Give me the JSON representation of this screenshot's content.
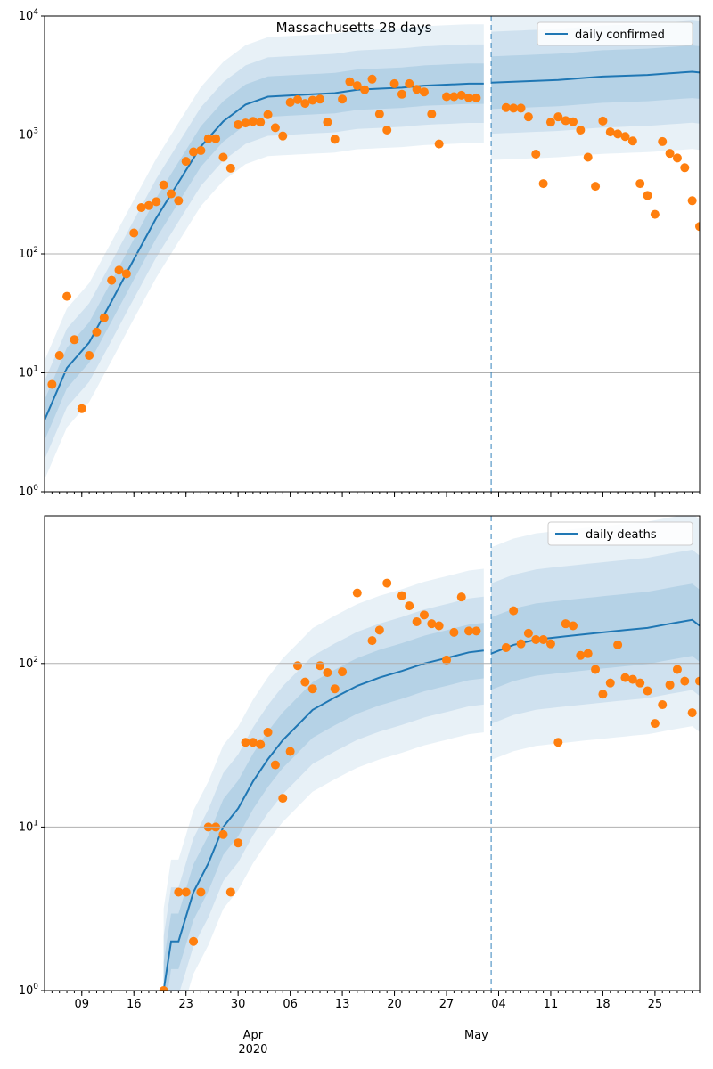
{
  "title": "Massachusetts 28 days",
  "x_month_labels": [
    {
      "date": "2020-04-01",
      "label": "Apr",
      "year": "2020"
    },
    {
      "date": "2020-05-01",
      "label": "May",
      "year": ""
    }
  ],
  "x_day_ticks": [
    {
      "date": "2020-03-09",
      "label": "09"
    },
    {
      "date": "2020-03-16",
      "label": "16"
    },
    {
      "date": "2020-03-23",
      "label": "23"
    },
    {
      "date": "2020-03-30",
      "label": "30"
    },
    {
      "date": "2020-04-06",
      "label": "06"
    },
    {
      "date": "2020-04-13",
      "label": "13"
    },
    {
      "date": "2020-04-20",
      "label": "20"
    },
    {
      "date": "2020-04-27",
      "label": "27"
    },
    {
      "date": "2020-05-04",
      "label": "04"
    },
    {
      "date": "2020-05-11",
      "label": "11"
    },
    {
      "date": "2020-05-18",
      "label": "18"
    },
    {
      "date": "2020-05-25",
      "label": "25"
    }
  ],
  "forecast_start": "2020-05-03",
  "chart_data": [
    {
      "type": "line",
      "scale": "log",
      "xlim": [
        "2020-03-04",
        "2020-05-31"
      ],
      "ylim": [
        1,
        10000
      ],
      "y_ticks": [
        "10^0",
        "10^1",
        "10^2",
        "10^3",
        "10^4"
      ],
      "grid": "horizontal",
      "legend": "top-right",
      "line_color": "#1f77b4",
      "point_color": "#ff7f0e",
      "series": [
        {
          "name": "daily confirmed",
          "kind": "median",
          "x": [
            "2020-03-04",
            "2020-03-07",
            "2020-03-10",
            "2020-03-13",
            "2020-03-16",
            "2020-03-19",
            "2020-03-22",
            "2020-03-25",
            "2020-03-28",
            "2020-03-31",
            "2020-04-03",
            "2020-04-06",
            "2020-04-09",
            "2020-04-12",
            "2020-04-15",
            "2020-04-18",
            "2020-04-21",
            "2020-04-24",
            "2020-04-27",
            "2020-04-30",
            "2020-05-02",
            "2020-05-03",
            "2020-05-06",
            "2020-05-09",
            "2020-05-12",
            "2020-05-15",
            "2020-05-18",
            "2020-05-21",
            "2020-05-24",
            "2020-05-27",
            "2020-05-30",
            "2020-05-31"
          ],
          "y": [
            4,
            11,
            18,
            40,
            90,
            200,
            400,
            800,
            1300,
            1800,
            2100,
            2150,
            2200,
            2250,
            2400,
            2450,
            2500,
            2600,
            2650,
            2700,
            2700,
            2750,
            2800,
            2850,
            2900,
            3000,
            3100,
            3150,
            3200,
            3300,
            3400,
            3350
          ]
        },
        {
          "name": "",
          "kind": "observed",
          "x": [
            "2020-03-05",
            "2020-03-06",
            "2020-03-07",
            "2020-03-08",
            "2020-03-09",
            "2020-03-10",
            "2020-03-11",
            "2020-03-12",
            "2020-03-13",
            "2020-03-14",
            "2020-03-15",
            "2020-03-16",
            "2020-03-17",
            "2020-03-18",
            "2020-03-19",
            "2020-03-20",
            "2020-03-21",
            "2020-03-22",
            "2020-03-23",
            "2020-03-24",
            "2020-03-25",
            "2020-03-26",
            "2020-03-27",
            "2020-03-28",
            "2020-03-29",
            "2020-03-30",
            "2020-03-31",
            "2020-04-01",
            "2020-04-02",
            "2020-04-03",
            "2020-04-04",
            "2020-04-05",
            "2020-04-06",
            "2020-04-07",
            "2020-04-08",
            "2020-04-09",
            "2020-04-10",
            "2020-04-11",
            "2020-04-12",
            "2020-04-13",
            "2020-04-14",
            "2020-04-15",
            "2020-04-16",
            "2020-04-17",
            "2020-04-18",
            "2020-04-19",
            "2020-04-20",
            "2020-04-21",
            "2020-04-22",
            "2020-04-23",
            "2020-04-24",
            "2020-04-25",
            "2020-04-26",
            "2020-04-27",
            "2020-04-28",
            "2020-04-29",
            "2020-04-30",
            "2020-05-01",
            "2020-05-05",
            "2020-05-06",
            "2020-05-07",
            "2020-05-08",
            "2020-05-09",
            "2020-05-10",
            "2020-05-11",
            "2020-05-12",
            "2020-05-13",
            "2020-05-14",
            "2020-05-15",
            "2020-05-16",
            "2020-05-17",
            "2020-05-18",
            "2020-05-19",
            "2020-05-20",
            "2020-05-21",
            "2020-05-22",
            "2020-05-23",
            "2020-05-24",
            "2020-05-25",
            "2020-05-26",
            "2020-05-27",
            "2020-05-28",
            "2020-05-29",
            "2020-05-30",
            "2020-05-31"
          ],
          "y": [
            8,
            14,
            44,
            19,
            5,
            14,
            22,
            29,
            60,
            73,
            68,
            150,
            245,
            255,
            275,
            380,
            320,
            280,
            600,
            720,
            740,
            930,
            930,
            650,
            525,
            1220,
            1260,
            1300,
            1280,
            1480,
            1150,
            980,
            1880,
            1980,
            1840,
            1960,
            2000,
            1280,
            920,
            2000,
            2800,
            2600,
            2400,
            2950,
            1500,
            1100,
            2700,
            2200,
            2700,
            2420,
            2300,
            1500,
            840,
            2100,
            2100,
            2160,
            2050,
            2050,
            1700,
            1680,
            1680,
            1420,
            690,
            390,
            1280,
            1420,
            1320,
            1290,
            1100,
            650,
            370,
            1310,
            1060,
            1020,
            970,
            890,
            390,
            310,
            215,
            880,
            700,
            640,
            530,
            280,
            170
          ]
        }
      ]
    },
    {
      "type": "line",
      "scale": "log",
      "xlim": [
        "2020-03-04",
        "2020-05-31"
      ],
      "ylim": [
        1,
        800
      ],
      "y_ticks": [
        "10^0",
        "10^1",
        "10^2"
      ],
      "grid": "horizontal",
      "legend": "top-right",
      "line_color": "#1f77b4",
      "point_color": "#ff7f0e",
      "series": [
        {
          "name": "daily deaths",
          "kind": "median",
          "x": [
            "2020-03-20",
            "2020-03-21",
            "2020-03-22",
            "2020-03-24",
            "2020-03-26",
            "2020-03-28",
            "2020-03-30",
            "2020-04-01",
            "2020-04-03",
            "2020-04-05",
            "2020-04-07",
            "2020-04-09",
            "2020-04-12",
            "2020-04-15",
            "2020-04-18",
            "2020-04-21",
            "2020-04-24",
            "2020-04-27",
            "2020-04-30",
            "2020-05-02",
            "2020-05-03",
            "2020-05-06",
            "2020-05-09",
            "2020-05-12",
            "2020-05-15",
            "2020-05-18",
            "2020-05-21",
            "2020-05-24",
            "2020-05-27",
            "2020-05-30",
            "2020-05-31"
          ],
          "y": [
            1,
            2,
            2,
            4,
            6,
            10,
            13,
            19,
            26,
            34,
            42,
            52,
            62,
            73,
            82,
            90,
            100,
            108,
            117,
            120,
            115,
            130,
            140,
            145,
            150,
            155,
            160,
            165,
            175,
            185,
            170
          ]
        },
        {
          "name": "",
          "kind": "observed",
          "x": [
            "2020-03-20",
            "2020-03-22",
            "2020-03-23",
            "2020-03-24",
            "2020-03-25",
            "2020-03-26",
            "2020-03-27",
            "2020-03-28",
            "2020-03-29",
            "2020-03-30",
            "2020-03-31",
            "2020-04-01",
            "2020-04-02",
            "2020-04-03",
            "2020-04-04",
            "2020-04-05",
            "2020-04-06",
            "2020-04-07",
            "2020-04-08",
            "2020-04-09",
            "2020-04-10",
            "2020-04-11",
            "2020-04-12",
            "2020-04-13",
            "2020-04-15",
            "2020-04-17",
            "2020-04-18",
            "2020-04-19",
            "2020-04-21",
            "2020-04-22",
            "2020-04-23",
            "2020-04-24",
            "2020-04-25",
            "2020-04-26",
            "2020-04-27",
            "2020-04-28",
            "2020-04-29",
            "2020-04-30",
            "2020-05-01",
            "2020-05-05",
            "2020-05-06",
            "2020-05-07",
            "2020-05-08",
            "2020-05-09",
            "2020-05-10",
            "2020-05-11",
            "2020-05-12",
            "2020-05-13",
            "2020-05-14",
            "2020-05-15",
            "2020-05-16",
            "2020-05-17",
            "2020-05-18",
            "2020-05-19",
            "2020-05-20",
            "2020-05-21",
            "2020-05-22",
            "2020-05-23",
            "2020-05-24",
            "2020-05-25",
            "2020-05-26",
            "2020-05-27",
            "2020-05-28",
            "2020-05-29",
            "2020-05-30",
            "2020-05-31"
          ],
          "y": [
            1,
            4,
            4,
            2,
            4,
            10,
            10,
            9,
            4,
            8,
            33,
            33,
            32,
            38,
            24,
            15,
            29,
            97,
            77,
            70,
            97,
            88,
            70,
            89,
            270,
            138,
            160,
            310,
            260,
            225,
            180,
            198,
            175,
            170,
            105,
            155,
            255,
            158,
            158,
            125,
            210,
            132,
            153,
            140,
            140,
            132,
            33,
            175,
            170,
            112,
            115,
            92,
            65,
            76,
            130,
            82,
            80,
            76,
            68,
            43,
            56,
            74,
            92,
            78,
            50,
            78
          ]
        }
      ]
    }
  ]
}
